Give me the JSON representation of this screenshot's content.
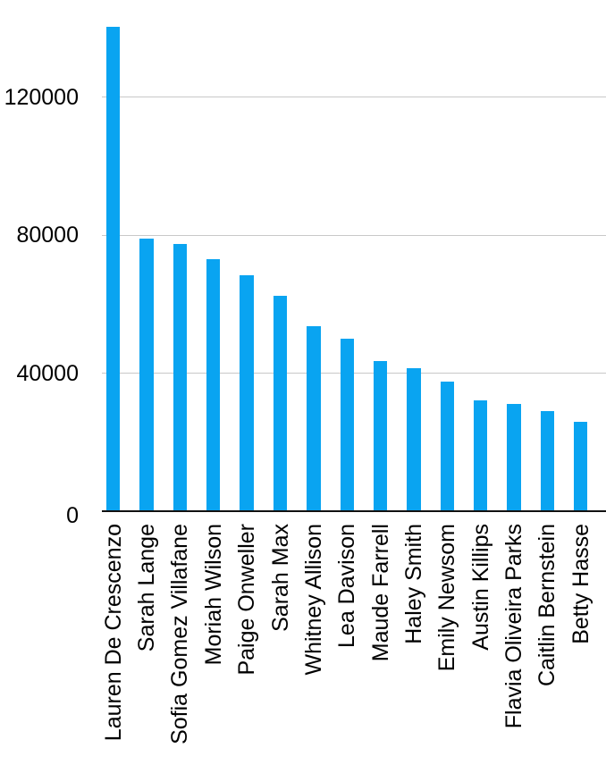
{
  "chart_data": {
    "type": "bar",
    "categories": [
      "Lauren De Crescenzo",
      "Sarah Lange",
      "Sofia Gomez Villafane",
      "Moriah Wilson",
      "Paige Onweller",
      "Sarah Max",
      "Whitney Allison",
      "Lea Davison",
      "Maude Farrell",
      "Haley Smith",
      "Emily Newsom",
      "Austin Killips",
      "Flavia Oliveira Parks",
      "Caitlin Bernstein",
      "Betty Hasse"
    ],
    "values": [
      140500,
      79000,
      77500,
      73000,
      68500,
      62500,
      53500,
      50000,
      43500,
      41500,
      37500,
      32000,
      31000,
      29000,
      26000
    ],
    "title": "",
    "xlabel": "",
    "ylabel": "",
    "ylim": [
      0,
      148000
    ],
    "yticks": [
      0,
      40000,
      80000,
      120000
    ],
    "ytick_labels": [
      "0",
      "40000",
      "80000",
      "120000"
    ],
    "grid": true,
    "legend": false,
    "bar_color": "#09a4f1",
    "gridline_color": "#c8c8c8",
    "axis_color": "#111111",
    "text_color": "#000000",
    "x_label_rotation_deg": -90
  }
}
